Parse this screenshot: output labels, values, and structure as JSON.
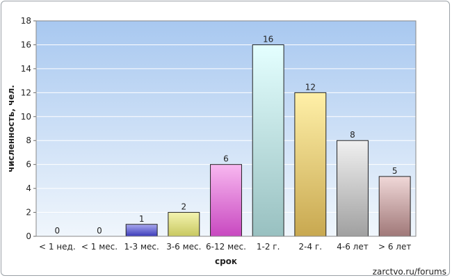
{
  "chart_data": {
    "type": "bar",
    "categories": [
      "< 1 нед.",
      "< 1 мес.",
      "1-3 мес.",
      "3-6 мес.",
      "6-12 мес.",
      "1-2 г.",
      "2-4 г.",
      "4-6 лет",
      "> 6 лет"
    ],
    "values": [
      0,
      0,
      1,
      2,
      6,
      16,
      12,
      8,
      5
    ],
    "xlabel": "срок",
    "ylabel": "численность, чел.",
    "ylim": [
      0,
      18
    ],
    "yticks": [
      0,
      2,
      4,
      6,
      8,
      10,
      12,
      14,
      16,
      18
    ],
    "grid": true,
    "bar_colors": [
      [
        "#d8d8f8",
        "#5858c8"
      ],
      [
        "#d8d8f8",
        "#5858c8"
      ],
      [
        "#aaaaf0",
        "#3a3ab8"
      ],
      [
        "#f4f4b0",
        "#c8c860"
      ],
      [
        "#f8b8f0",
        "#c848c0"
      ],
      [
        "#e4ffff",
        "#98c0c0"
      ],
      [
        "#fff0a8",
        "#c8a850"
      ],
      [
        "#f0f0f0",
        "#a0a0a0"
      ],
      [
        "#f0d8d8",
        "#a07878"
      ]
    ],
    "plot_background": [
      "#a8c8f0",
      "#f0f6fc"
    ]
  },
  "footer": {
    "credit": "zarctvo.ru/forums"
  }
}
